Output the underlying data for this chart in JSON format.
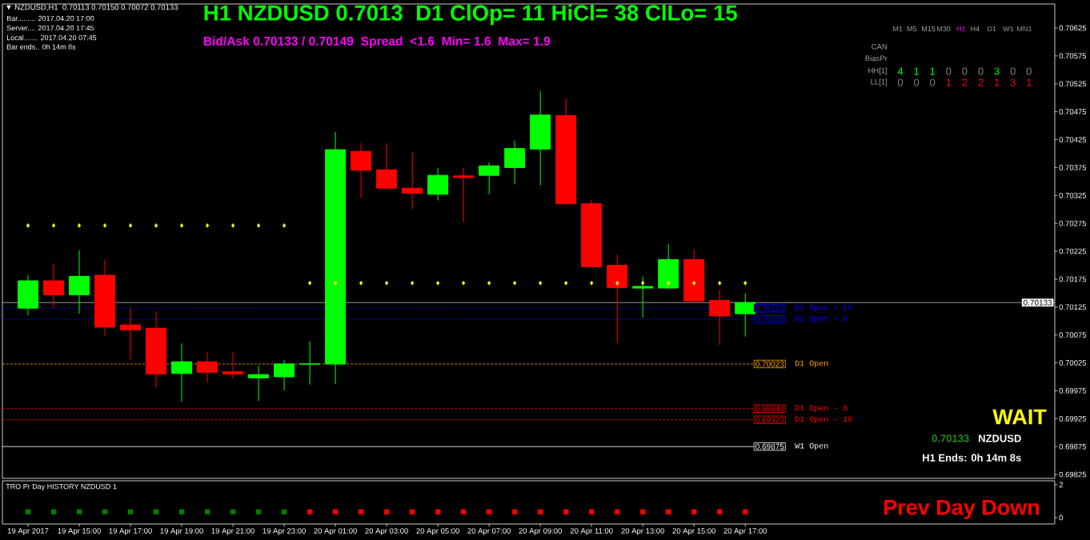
{
  "chart_data": [
    {
      "type": "candlestick",
      "title": "H1 NZDUSD 0.7013  D1 ClOp= 11 HiCl= 38 ClLo= 15",
      "subtitle": "Bid/Ask 0.70133 / 0.70149  Spread  <1.6  Min= 1.6  Max= 1.9",
      "x": [
        "2017-04-19T13:00",
        "2017-04-19T14:00",
        "2017-04-19T15:00",
        "2017-04-19T16:00",
        "2017-04-19T17:00",
        "2017-04-19T18:00",
        "2017-04-19T19:00",
        "2017-04-19T20:00",
        "2017-04-19T21:00",
        "2017-04-19T22:00",
        "2017-04-19T23:00",
        "2017-04-20T00:00",
        "2017-04-20T01:00",
        "2017-04-20T02:00",
        "2017-04-20T03:00",
        "2017-04-20T04:00",
        "2017-04-20T05:00",
        "2017-04-20T06:00",
        "2017-04-20T07:00",
        "2017-04-20T08:00",
        "2017-04-20T09:00",
        "2017-04-20T10:00",
        "2017-04-20T11:00",
        "2017-04-20T12:00",
        "2017-04-20T13:00",
        "2017-04-20T14:00",
        "2017-04-20T15:00",
        "2017-04-20T16:00",
        "2017-04-20T17:00"
      ],
      "ohlc": [
        [
          0.70123,
          0.70182,
          0.7011,
          0.70172
        ],
        [
          0.70172,
          0.70203,
          0.70124,
          0.70147
        ],
        [
          0.70147,
          0.70227,
          0.70113,
          0.7018
        ],
        [
          0.70182,
          0.70209,
          0.70073,
          0.70089
        ],
        [
          0.70093,
          0.70123,
          0.70031,
          0.70084
        ],
        [
          0.70087,
          0.70117,
          0.69981,
          0.70005
        ],
        [
          0.70006,
          0.7006,
          0.69955,
          0.70027
        ],
        [
          0.70027,
          0.70044,
          0.6999,
          0.70008
        ],
        [
          0.70009,
          0.70044,
          0.69997,
          0.70005
        ],
        [
          0.69998,
          0.7002,
          0.69957,
          0.70004
        ],
        [
          0.7,
          0.7003,
          0.69976,
          0.70023
        ],
        [
          0.70023,
          0.70064,
          0.69986,
          0.70023
        ],
        [
          0.70023,
          0.70439,
          0.69987,
          0.70407
        ],
        [
          0.70404,
          0.70419,
          0.70321,
          0.7037
        ],
        [
          0.70371,
          0.70419,
          0.70336,
          0.70338
        ],
        [
          0.70338,
          0.70403,
          0.703,
          0.70329
        ],
        [
          0.70327,
          0.70374,
          0.70316,
          0.70361
        ],
        [
          0.7036,
          0.70374,
          0.70277,
          0.70357
        ],
        [
          0.70361,
          0.70384,
          0.70327,
          0.70378
        ],
        [
          0.70375,
          0.70423,
          0.70345,
          0.70409
        ],
        [
          0.70408,
          0.70512,
          0.70343,
          0.70469
        ],
        [
          0.70468,
          0.70498,
          0.70309,
          0.7031
        ],
        [
          0.7031,
          0.70317,
          0.70196,
          0.70197
        ],
        [
          0.702,
          0.70219,
          0.70061,
          0.7016
        ],
        [
          0.70159,
          0.7018,
          0.70106,
          0.70162
        ],
        [
          0.70159,
          0.70238,
          0.70158,
          0.7021
        ],
        [
          0.7021,
          0.70228,
          0.70134,
          0.70136
        ],
        [
          0.70137,
          0.70156,
          0.70057,
          0.70109
        ],
        [
          0.70113,
          0.7015,
          0.70072,
          0.70133
        ]
      ],
      "colors": [
        "#00ff00",
        "#ff0000",
        "#00ff00",
        "#ff0000",
        "#ff0000",
        "#ff0000",
        "#00ff00",
        "#ff0000",
        "#ff0000",
        "#00ff00",
        "#00ff00",
        "#00ff00",
        "#00ff00",
        "#ff0000",
        "#ff0000",
        "#ff0000",
        "#00ff00",
        "#ff0000",
        "#00ff00",
        "#00ff00",
        "#00ff00",
        "#ff0000",
        "#ff0000",
        "#ff0000",
        "#00ff00",
        "#00ff00",
        "#ff0000",
        "#ff0000",
        "#00ff00"
      ],
      "series": [
        {
          "type": "scatter",
          "color": "#ffff00",
          "values": [
            0.70271,
            0.70271,
            0.70271,
            0.70271,
            0.70271,
            0.70271,
            0.70271,
            0.70271,
            0.70271,
            0.70271,
            0.70271,
            0.70168,
            0.70168,
            0.70168,
            0.70168,
            0.70168,
            0.70168,
            0.70168,
            0.70168,
            0.70168,
            0.70168,
            0.70168,
            0.70168,
            0.70168,
            0.70168,
            0.70168,
            0.70168,
            0.70168,
            0.70168
          ]
        }
      ],
      "marker": "diamond",
      "xlim": [
        "2017-04-19T12:00",
        "2017-04-21T05:05"
      ],
      "ylim": [
        0.69818,
        0.70668
      ],
      "yticks": [
        0.69825,
        0.69875,
        0.69925,
        0.69975,
        0.70025,
        0.70075,
        0.70125,
        0.70175,
        0.70225,
        0.70275,
        0.70325,
        0.70375,
        0.70425,
        0.70475,
        0.70525,
        0.70575,
        0.70625
      ],
      "tick_labels": "y",
      "ref_lines": [
        {
          "axis": "y",
          "value": 0.70133,
          "color": "#c0c0c0",
          "line_style": "solid"
        },
        {
          "axis": "y",
          "value": 0.70123,
          "label": "D1 Open + 10",
          "color": "#0000ff",
          "line_style": "dashed"
        },
        {
          "axis": "y",
          "value": 0.70103,
          "label": "D1 Open + 8",
          "color": "#0000ff",
          "line_style": "dashed"
        },
        {
          "axis": "y",
          "value": 0.70023,
          "label": "D1 Open",
          "color": "#ffa500",
          "line_style": "dashed"
        },
        {
          "axis": "y",
          "value": 0.69943,
          "label": "D1 Open - 8",
          "color": "#ff0000",
          "line_style": "dashed"
        },
        {
          "axis": "y",
          "value": 0.69923,
          "label": "D1 Open - 10",
          "color": "#ff0000",
          "line_style": "dashed"
        },
        {
          "axis": "y",
          "value": 0.69875,
          "label": "W1 Open",
          "color": "#ffffff",
          "line_style": "solid"
        }
      ],
      "annotations": [
        "▼ NZDUSD,H1  0.70113 0.70150 0.70072 0.70133",
        "Bar......... 2017.04.20 17:00",
        "Server.... 2017.04.20 17:45",
        "Local....... 2017.04.20 07:45",
        "Bar ends.. 0h 14m 8s",
        "M1",
        "M5",
        "M15",
        "M30",
        "H1",
        "H4",
        "D1",
        "W1",
        "MN1",
        "CAN",
        "BiasPr",
        "HH[1]",
        "LL[1]",
        "4",
        "1",
        "1",
        "0",
        "0",
        "0",
        "3",
        "0",
        "0",
        "0",
        "0",
        "0",
        "1",
        "2",
        "2",
        "1",
        "3",
        "1",
        "WAIT",
        "0.70133",
        "NZDUSD",
        "H1 Ends: 0h 14m 8s",
        "0.70133",
        "0.70123",
        "0.70103",
        "0.70023",
        "0.69943",
        "0.69923",
        "0.69875"
      ]
    },
    {
      "type": "scatter",
      "title": "TRO Pr Day HISTORY NZDUSD 1",
      "x": [
        "2017-04-19T13:00",
        "2017-04-19T14:00",
        "2017-04-19T15:00",
        "2017-04-19T16:00",
        "2017-04-19T17:00",
        "2017-04-19T18:00",
        "2017-04-19T19:00",
        "2017-04-19T20:00",
        "2017-04-19T21:00",
        "2017-04-19T22:00",
        "2017-04-19T23:00",
        "2017-04-20T00:00",
        "2017-04-20T01:00",
        "2017-04-20T02:00",
        "2017-04-20T03:00",
        "2017-04-20T04:00",
        "2017-04-20T05:00",
        "2017-04-20T06:00",
        "2017-04-20T07:00",
        "2017-04-20T08:00",
        "2017-04-20T09:00",
        "2017-04-20T10:00",
        "2017-04-20T11:00",
        "2017-04-20T12:00",
        "2017-04-20T13:00",
        "2017-04-20T14:00",
        "2017-04-20T15:00",
        "2017-04-20T16:00",
        "2017-04-20T17:00"
      ],
      "values": [
        0.35,
        0.35,
        0.35,
        0.35,
        0.35,
        0.35,
        0.35,
        0.35,
        0.35,
        0.35,
        0.35,
        0.35,
        0.35,
        0.35,
        0.35,
        0.35,
        0.35,
        0.35,
        0.35,
        0.35,
        0.35,
        0.35,
        0.35,
        0.35,
        0.35,
        0.35,
        0.35,
        0.35,
        0.35
      ],
      "colors": [
        "#008000",
        "#008000",
        "#008000",
        "#008000",
        "#008000",
        "#008000",
        "#008000",
        "#008000",
        "#008000",
        "#008000",
        "#008000",
        "#ff0000",
        "#ff0000",
        "#ff0000",
        "#ff0000",
        "#ff0000",
        "#ff0000",
        "#ff0000",
        "#ff0000",
        "#ff0000",
        "#ff0000",
        "#ff0000",
        "#ff0000",
        "#ff0000",
        "#ff0000",
        "#ff0000",
        "#ff0000",
        "#ff0000",
        "#ff0000"
      ],
      "marker": "square",
      "xlim": [
        "2017-04-19T12:00",
        "2017-04-21T05:05"
      ],
      "xticks": [
        {
          "value": "2017-04-19T13:00",
          "label": "19 Apr 2017"
        },
        {
          "value": "2017-04-19T15:00",
          "label": "19 Apr 15:00"
        },
        {
          "value": "2017-04-19T17:00",
          "label": "19 Apr 17:00"
        },
        {
          "value": "2017-04-19T19:00",
          "label": "19 Apr 19:00"
        },
        {
          "value": "2017-04-19T21:00",
          "label": "19 Apr 21:00"
        },
        {
          "value": "2017-04-19T23:00",
          "label": "19 Apr 23:00"
        },
        {
          "value": "2017-04-20T01:00",
          "label": "20 Apr 01:00"
        },
        {
          "value": "2017-04-20T03:00",
          "label": "20 Apr 03:00"
        },
        {
          "value": "2017-04-20T05:00",
          "label": "20 Apr 05:00"
        },
        {
          "value": "2017-04-20T07:00",
          "label": "20 Apr 07:00"
        },
        {
          "value": "2017-04-20T09:00",
          "label": "20 Apr 09:00"
        },
        {
          "value": "2017-04-20T11:00",
          "label": "20 Apr 11:00"
        },
        {
          "value": "2017-04-20T13:00",
          "label": "20 Apr 13:00"
        },
        {
          "value": "2017-04-20T15:00",
          "label": "20 Apr 15:00"
        },
        {
          "value": "2017-04-20T17:00",
          "label": "20 Apr 17:00"
        }
      ],
      "ylim": [
        -0.39,
        2.24
      ],
      "yticks": [
        0,
        2
      ],
      "annotations": [
        "Prev Day Down"
      ]
    }
  ]
}
